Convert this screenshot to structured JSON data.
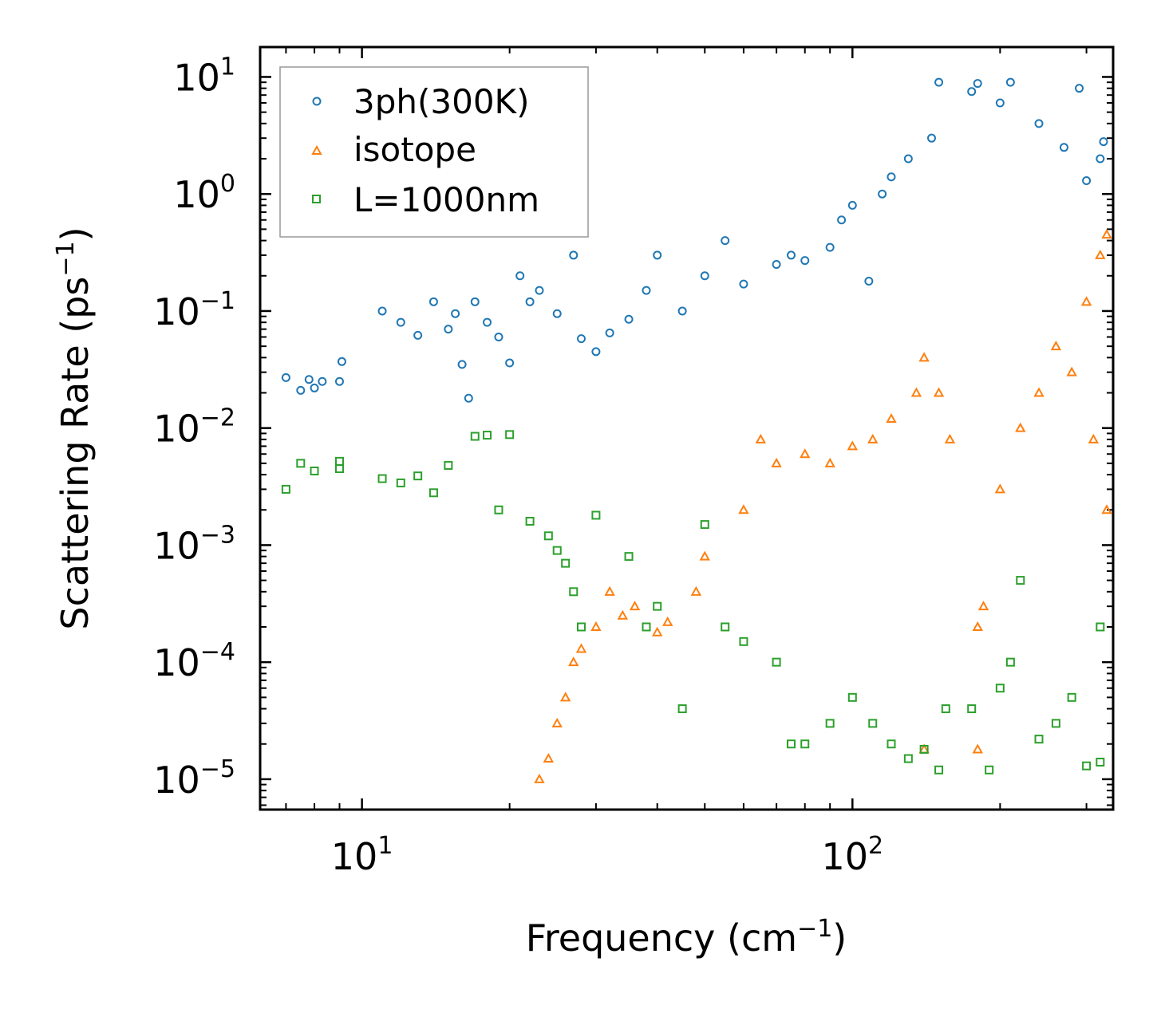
{
  "chart_data": {
    "type": "scatter",
    "xscale": "log",
    "yscale": "log",
    "xlim": [
      6.2,
      340
    ],
    "ylim": [
      5.5e-06,
      18
    ],
    "xlabel": {
      "main": "Frequency (cm",
      "sup": "−1",
      "tail": ")"
    },
    "ylabel": {
      "main": "Scattering Rate (ps",
      "sup": "−1",
      "tail": ")"
    },
    "x_ticks": [
      {
        "value": 10,
        "base": "10",
        "exp": "1"
      },
      {
        "value": 100,
        "base": "10",
        "exp": "2"
      }
    ],
    "y_ticks": [
      {
        "value": 10,
        "base": "10",
        "exp": "1"
      },
      {
        "value": 1,
        "base": "10",
        "exp": "0"
      },
      {
        "value": 0.1,
        "base": "10",
        "exp": "−1"
      },
      {
        "value": 0.01,
        "base": "10",
        "exp": "−2"
      },
      {
        "value": 0.001,
        "base": "10",
        "exp": "−3"
      },
      {
        "value": 0.0001,
        "base": "10",
        "exp": "−4"
      },
      {
        "value": 1e-05,
        "base": "10",
        "exp": "−5"
      }
    ],
    "legend_position": "top-left",
    "series": [
      {
        "name": "3ph(300K)",
        "marker": "circle",
        "color": "#1f77b4",
        "points": [
          [
            7.0,
            0.027
          ],
          [
            7.5,
            0.021
          ],
          [
            7.8,
            0.026
          ],
          [
            8.0,
            0.022
          ],
          [
            8.3,
            0.025
          ],
          [
            9.0,
            0.025
          ],
          [
            9.1,
            0.037
          ],
          [
            11.0,
            0.1
          ],
          [
            12.0,
            0.08
          ],
          [
            13.0,
            0.062
          ],
          [
            14.0,
            0.12
          ],
          [
            15.0,
            0.07
          ],
          [
            15.5,
            0.095
          ],
          [
            16.0,
            0.035
          ],
          [
            16.5,
            0.018
          ],
          [
            17.0,
            0.12
          ],
          [
            18.0,
            0.08
          ],
          [
            19.0,
            0.06
          ],
          [
            20.0,
            0.036
          ],
          [
            21.0,
            0.2
          ],
          [
            22.0,
            0.12
          ],
          [
            23.0,
            0.15
          ],
          [
            25.0,
            0.095
          ],
          [
            27.0,
            0.3
          ],
          [
            28.0,
            0.058
          ],
          [
            30.0,
            0.045
          ],
          [
            32.0,
            0.065
          ],
          [
            35.0,
            0.085
          ],
          [
            38.0,
            0.15
          ],
          [
            40.0,
            0.3
          ],
          [
            45.0,
            0.1
          ],
          [
            50.0,
            0.2
          ],
          [
            55.0,
            0.4
          ],
          [
            60.0,
            0.17
          ],
          [
            70.0,
            0.25
          ],
          [
            75.0,
            0.3
          ],
          [
            80.0,
            0.27
          ],
          [
            90.0,
            0.35
          ],
          [
            95.0,
            0.6
          ],
          [
            100.0,
            0.8
          ],
          [
            108.0,
            0.18
          ],
          [
            115.0,
            1.0
          ],
          [
            120.0,
            1.4
          ],
          [
            130.0,
            2.0
          ],
          [
            145.0,
            3.0
          ],
          [
            150.0,
            9.0
          ],
          [
            175.0,
            7.5
          ],
          [
            180.0,
            8.8
          ],
          [
            200.0,
            6.0
          ],
          [
            210.0,
            9.0
          ],
          [
            240.0,
            4.0
          ],
          [
            270.0,
            2.5
          ],
          [
            290.0,
            8.0
          ],
          [
            300.0,
            1.3
          ],
          [
            320.0,
            2.0
          ],
          [
            325.0,
            2.8
          ]
        ]
      },
      {
        "name": "isotope",
        "marker": "triangle",
        "color": "#ff7f0e",
        "points": [
          [
            23.0,
            1e-05
          ],
          [
            24.0,
            1.5e-05
          ],
          [
            25.0,
            3e-05
          ],
          [
            26.0,
            5e-05
          ],
          [
            27.0,
            0.0001
          ],
          [
            28.0,
            0.00013
          ],
          [
            30.0,
            0.0002
          ],
          [
            32.0,
            0.0004
          ],
          [
            34.0,
            0.00025
          ],
          [
            36.0,
            0.0003
          ],
          [
            40.0,
            0.00018
          ],
          [
            42.0,
            0.00022
          ],
          [
            48.0,
            0.0004
          ],
          [
            50.0,
            0.0008
          ],
          [
            60.0,
            0.002
          ],
          [
            65.0,
            0.008
          ],
          [
            70.0,
            0.005
          ],
          [
            80.0,
            0.006
          ],
          [
            90.0,
            0.005
          ],
          [
            100.0,
            0.007
          ],
          [
            110.0,
            0.008
          ],
          [
            120.0,
            0.012
          ],
          [
            135.0,
            0.02
          ],
          [
            140.0,
            0.04
          ],
          [
            150.0,
            0.02
          ],
          [
            158.0,
            0.008
          ],
          [
            140.0,
            1.8e-05
          ],
          [
            180.0,
            1.8e-05
          ],
          [
            180.0,
            0.0002
          ],
          [
            185.0,
            0.0003
          ],
          [
            200.0,
            0.003
          ],
          [
            220.0,
            0.01
          ],
          [
            240.0,
            0.02
          ],
          [
            260.0,
            0.05
          ],
          [
            280.0,
            0.03
          ],
          [
            300.0,
            0.12
          ],
          [
            320.0,
            0.3
          ],
          [
            330.0,
            0.45
          ],
          [
            310.0,
            0.008
          ],
          [
            330.0,
            0.002
          ]
        ]
      },
      {
        "name": "L=1000nm",
        "marker": "square",
        "color": "#2ca02c",
        "points": [
          [
            7.0,
            0.003
          ],
          [
            7.5,
            0.005
          ],
          [
            8.0,
            0.0043
          ],
          [
            9.0,
            0.0045
          ],
          [
            9.0,
            0.0052
          ],
          [
            11.0,
            0.0037
          ],
          [
            12.0,
            0.0034
          ],
          [
            13.0,
            0.0039
          ],
          [
            14.0,
            0.0028
          ],
          [
            15.0,
            0.0048
          ],
          [
            17.0,
            0.0085
          ],
          [
            18.0,
            0.0087
          ],
          [
            19.0,
            0.002
          ],
          [
            20.0,
            0.0088
          ],
          [
            22.0,
            0.0016
          ],
          [
            24.0,
            0.0012
          ],
          [
            25.0,
            0.0009
          ],
          [
            26.0,
            0.0007
          ],
          [
            27.0,
            0.0004
          ],
          [
            28.0,
            0.0002
          ],
          [
            30.0,
            0.0018
          ],
          [
            35.0,
            0.0008
          ],
          [
            38.0,
            0.0002
          ],
          [
            40.0,
            0.0003
          ],
          [
            45.0,
            4e-05
          ],
          [
            50.0,
            0.0015
          ],
          [
            55.0,
            0.0002
          ],
          [
            60.0,
            0.00015
          ],
          [
            70.0,
            0.0001
          ],
          [
            75.0,
            2e-05
          ],
          [
            80.0,
            2e-05
          ],
          [
            90.0,
            3e-05
          ],
          [
            100.0,
            5e-05
          ],
          [
            110.0,
            3e-05
          ],
          [
            120.0,
            2e-05
          ],
          [
            130.0,
            1.5e-05
          ],
          [
            140.0,
            1.8e-05
          ],
          [
            150.0,
            1.2e-05
          ],
          [
            155.0,
            4e-05
          ],
          [
            175.0,
            4e-05
          ],
          [
            190.0,
            1.2e-05
          ],
          [
            200.0,
            6e-05
          ],
          [
            210.0,
            0.0001
          ],
          [
            220.0,
            0.0005
          ],
          [
            240.0,
            2.2e-05
          ],
          [
            260.0,
            3e-05
          ],
          [
            280.0,
            5e-05
          ],
          [
            300.0,
            1.3e-05
          ],
          [
            320.0,
            1.4e-05
          ],
          [
            320.0,
            0.0002
          ]
        ]
      }
    ]
  }
}
